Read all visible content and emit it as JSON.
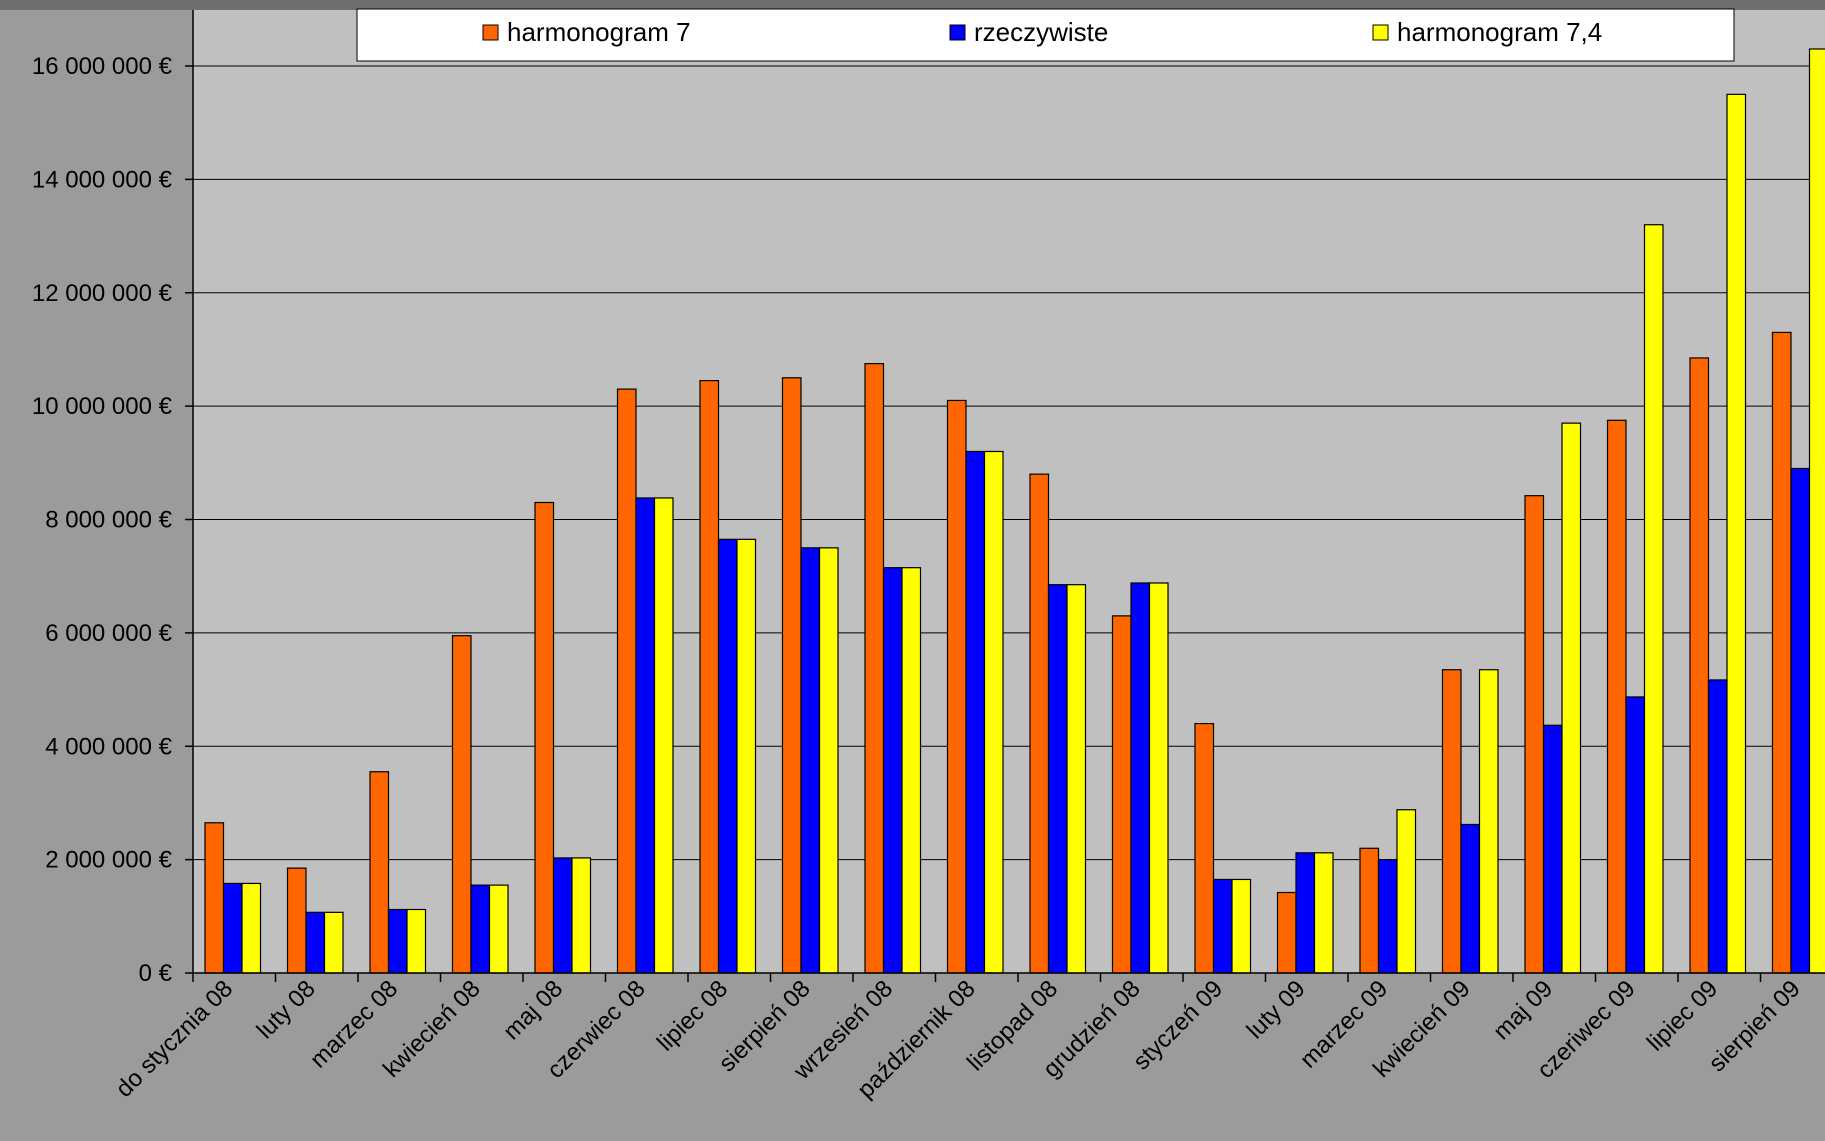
{
  "chart_data": {
    "type": "bar",
    "categories": [
      "do stycznia 08",
      "luty 08",
      "marzec 08",
      "kwiecień 08",
      "maj 08",
      "czerwiec 08",
      "lipiec 08",
      "sierpień 08",
      "wrzesień 08",
      "październik 08",
      "listopad 08",
      "grudzień 08",
      "styczeń 09",
      "luty 09",
      "marzec 09",
      "kwiecień 09",
      "maj 09",
      "czeriwec 09",
      "lipiec 09",
      "sierpień 09"
    ],
    "series": [
      {
        "name": "harmonogram 7",
        "color": "#ff6600",
        "values": [
          2650000,
          1850000,
          3550000,
          5950000,
          8300000,
          10300000,
          10450000,
          10500000,
          10750000,
          10100000,
          8800000,
          6300000,
          4400000,
          1420000,
          2200000,
          5350000,
          8420000,
          9750000,
          10850000,
          11300000
        ]
      },
      {
        "name": "rzeczywiste",
        "color": "#0000ff",
        "values": [
          1580000,
          1070000,
          1120000,
          1550000,
          2030000,
          8380000,
          7650000,
          7500000,
          7150000,
          9200000,
          6850000,
          6880000,
          1650000,
          2120000,
          2000000,
          2620000,
          4370000,
          4870000,
          5170000,
          8900000
        ]
      },
      {
        "name": "harmonogram 7,4",
        "color": "#ffff00",
        "values": [
          1580000,
          1070000,
          1120000,
          1550000,
          2030000,
          8380000,
          7650000,
          7500000,
          7150000,
          9200000,
          6850000,
          6880000,
          1650000,
          2120000,
          2880000,
          5350000,
          9700000,
          13200000,
          15500000,
          16300000
        ]
      }
    ],
    "ylim": [
      0,
      16000000
    ],
    "yticks": [
      0,
      2000000,
      4000000,
      6000000,
      8000000,
      10000000,
      12000000,
      14000000,
      16000000
    ],
    "ytick_labels": [
      "0 €",
      "2 000 000 €",
      "4 000 000 €",
      "6 000 000 €",
      "8 000 000 €",
      "10 000 000 €",
      "12 000 000 €",
      "14 000 000 €",
      "16 000 000 €"
    ],
    "grid": true,
    "legend_position": "top"
  }
}
